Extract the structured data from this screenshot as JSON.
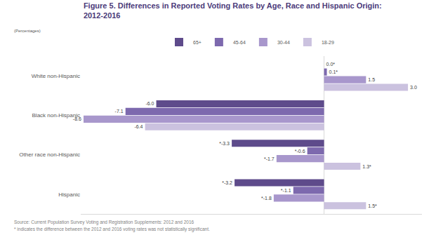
{
  "chart_data": {
    "type": "bar",
    "orientation": "horizontal",
    "title": "Figure 5. Differences in Reported Voting Rates by Age, Race and Hispanic Origin:\n2012-2016",
    "subtitle": "(Percentages)",
    "annotations": [
      "Source: Current Population Survey Voting and Registration Supplements: 2012 and 2016",
      "* indicates the difference between the 2012 and 2016 voting rates was not statistically significant."
    ],
    "categories": [
      "White non-Hispanic",
      "Black non-Hispanic",
      "Other race non-Hispanic",
      "Hispanic"
    ],
    "series": [
      {
        "name": "65+",
        "color": "#5e4b8b",
        "values": [
          0.0,
          -6.0,
          -3.3,
          -3.2
        ],
        "value_labels": [
          "0.0*",
          "-6.0",
          "*-3.3",
          "*-3.2"
        ]
      },
      {
        "name": "45-64",
        "color": "#7d69ae",
        "values": [
          0.1,
          -7.1,
          -0.6,
          -1.1
        ],
        "value_labels": [
          "0.1*",
          "-7.1",
          "*-0.6",
          "*-1.1"
        ]
      },
      {
        "name": "30-44",
        "color": "#a897cc",
        "values": [
          1.5,
          -8.6,
          -1.7,
          -1.8
        ],
        "value_labels": [
          "1.5",
          "-8.6",
          "*-1.7",
          "*-1.8"
        ]
      },
      {
        "name": "18-29",
        "color": "#cbc2df",
        "values": [
          3.0,
          -6.4,
          1.3,
          1.5
        ],
        "value_labels": [
          "3.0",
          "-6.4",
          "1.3*",
          "1.5*"
        ]
      }
    ],
    "xlim": [
      -8.7,
      3.5
    ],
    "tick_labels": false,
    "grid": false,
    "legend": "top",
    "data_labels": true
  }
}
